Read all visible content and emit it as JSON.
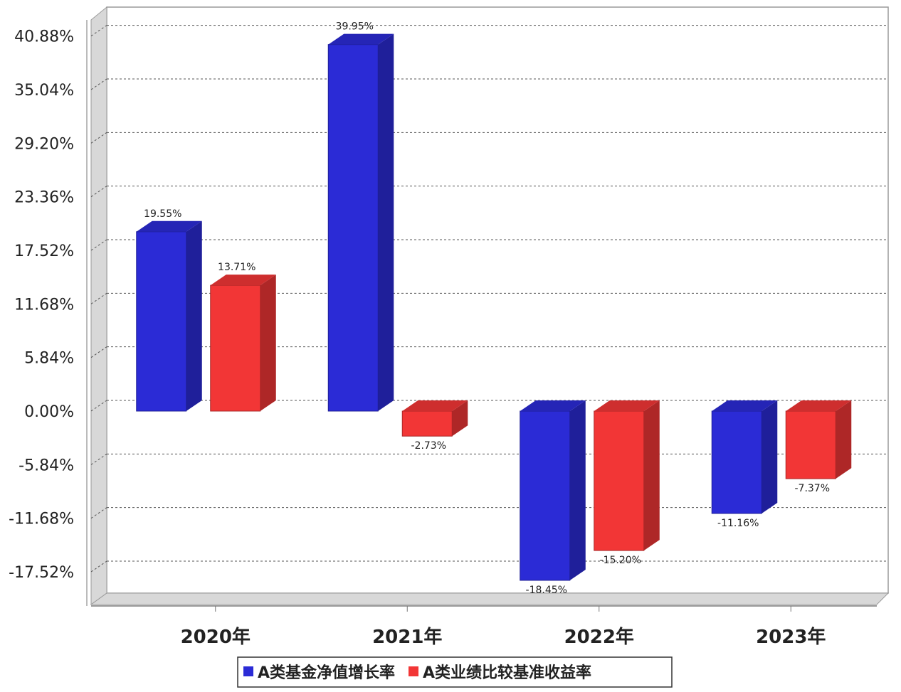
{
  "chart_data": {
    "type": "bar",
    "categories": [
      "2020年",
      "2021年",
      "2022年",
      "2023年"
    ],
    "series": [
      {
        "name": "A类基金净值增长率",
        "color": "#2b2bd6",
        "values": [
          19.55,
          39.95,
          -18.45,
          -11.16
        ],
        "labels": [
          "19.55%",
          "39.95%",
          "-18.45%",
          "-11.16%"
        ]
      },
      {
        "name": "A类业绩比较基准收益率",
        "color": "#f23636",
        "values": [
          13.71,
          -2.73,
          -15.2,
          -7.37
        ],
        "labels": [
          "13.71%",
          "-2.73%",
          "-15.20%",
          "-7.37%"
        ]
      }
    ],
    "y_ticks": [
      40.88,
      35.04,
      29.2,
      23.36,
      17.52,
      11.68,
      5.84,
      0.0,
      -5.84,
      -11.68,
      -17.52
    ],
    "y_tick_labels": [
      "40.88%",
      "35.04%",
      "29.20%",
      "23.36%",
      "17.52%",
      "11.68%",
      "5.84%",
      "0.00%",
      "-5.84%",
      "-11.68%",
      "-17.52%"
    ],
    "ylim": [
      -20.5,
      43.5
    ],
    "grid": true,
    "legend_position": "bottom",
    "style": "3d-bar"
  }
}
